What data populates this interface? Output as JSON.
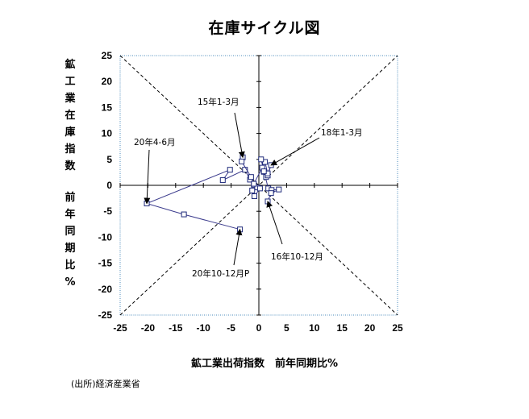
{
  "chart_data": {
    "type": "scatter",
    "title": "在庫サイクル図",
    "xlabel": "鉱工業出荷指数　前年同期比%",
    "ylabel_main": "鉱工業在庫指数",
    "ylabel_sub": "前年同期比%",
    "xlim": [
      -25,
      25
    ],
    "ylim": [
      -25,
      25
    ],
    "xticks": [
      "-25",
      "-20",
      "-15",
      "-10",
      "-5",
      "0",
      "5",
      "10",
      "15",
      "20",
      "25"
    ],
    "yticks": [
      "25",
      "20",
      "15",
      "10",
      "5",
      "0",
      "-5",
      "-10",
      "-15",
      "-20",
      "-25"
    ],
    "grid": false,
    "legend": "none",
    "colors": {
      "line": "#3a3a8c",
      "marker_edge": "#1f2a7a",
      "axis": "#000000",
      "frame": "#4b8bbd"
    },
    "series": [
      {
        "x": [
          -3.4,
          -13.5,
          -20.2,
          -5.2,
          -6.5,
          -2.5,
          -1.6,
          -0.9,
          -0.3,
          -1.2,
          -0.8,
          0.2
        ],
        "y": [
          -8.5,
          -5.6,
          -3.5,
          3.0,
          1.0,
          3.0,
          1.1,
          0.1,
          -0.4,
          -1.0,
          -2.1,
          -0.6
        ]
      },
      {
        "x": [
          -2.9,
          -3.1,
          -1.4,
          -0.9,
          0.6,
          0.9,
          1.3,
          1.6,
          2.2,
          1.6,
          1.1,
          0.4,
          0.9,
          1.7,
          2.3,
          3.6,
          2.2,
          1.6
        ],
        "y": [
          5.4,
          4.6,
          1.6,
          0.3,
          3.4,
          2.6,
          1.6,
          1.9,
          3.9,
          2.3,
          4.5,
          5.0,
          2.7,
          -0.6,
          -0.9,
          -0.8,
          -1.5,
          -3.1
        ]
      }
    ],
    "annotations": [
      {
        "text": "15年1-3月",
        "x": -2.9,
        "y": 5.4
      },
      {
        "text": "18年1-3月",
        "x": 2.2,
        "y": 3.9
      },
      {
        "text": "20年4-6月",
        "x": -20.2,
        "y": -3.5
      },
      {
        "text": "16年10-12月",
        "x": 1.6,
        "y": -3.1
      },
      {
        "text": "20年10-12月P",
        "x": -3.4,
        "y": -8.5
      }
    ]
  },
  "source": "(出所)経済産業省"
}
